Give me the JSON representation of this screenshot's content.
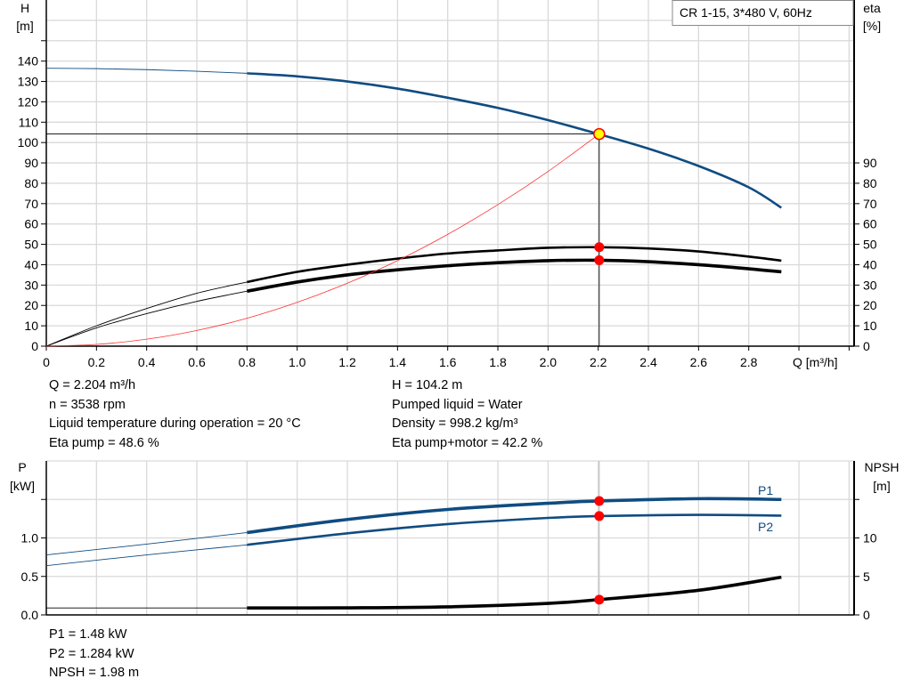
{
  "title": "CR 1-15, 3*480 V, 60Hz",
  "colors": {
    "head": "#0f4c81",
    "efficiency": "#000000",
    "system": "#ff3030",
    "point": "#ff0000",
    "duty_point_fill": "#ffff00",
    "grid": "#d9d9d9"
  },
  "chart_data": [
    {
      "type": "line",
      "title": "CR 1-15, 3*480 V, 60Hz",
      "xlabel": "Q [m³/h]",
      "ylabel": "H\n[m]",
      "y2label": "eta\n[%]",
      "xlabel_text": "Q [m³/h]",
      "ylabel_name": "H",
      "ylabel_unit": "[m]",
      "y2label_name": "eta",
      "y2label_unit": "[%]",
      "xlim": [
        0,
        3.22
      ],
      "ylim": [
        0,
        170
      ],
      "y2lim": [
        0,
        170
      ],
      "xticks": [
        0,
        0.2,
        0.4,
        0.6,
        0.8,
        1.0,
        1.2,
        1.4,
        1.6,
        1.8,
        2.0,
        2.2,
        2.4,
        2.6,
        2.8
      ],
      "xtick_labels": [
        "0",
        "0.2",
        "0.4",
        "0.6",
        "0.8",
        "1.0",
        "1.2",
        "1.4",
        "1.6",
        "1.8",
        "2.0",
        "2.2",
        "2.4",
        "2.6",
        "2.8"
      ],
      "yticks": [
        0,
        10,
        20,
        30,
        40,
        50,
        60,
        70,
        80,
        90,
        100,
        110,
        120,
        130,
        140
      ],
      "y2ticks": [
        0,
        10,
        20,
        30,
        40,
        50,
        60,
        70,
        80,
        90
      ],
      "grid": true,
      "series": [
        {
          "key": "H",
          "axis": "left",
          "color": "#0f4c81",
          "x": [
            0,
            0.2,
            0.4,
            0.6,
            0.8,
            1.0,
            1.2,
            1.4,
            1.6,
            1.8,
            2.0,
            2.2,
            2.4,
            2.6,
            2.8,
            2.93
          ],
          "y": [
            136.5,
            136.3,
            135.8,
            135,
            134,
            132.5,
            130,
            126.5,
            122,
            117,
            111,
            104.2,
            97,
            88.5,
            78,
            68
          ],
          "thin_until": 0.8
        },
        {
          "key": "eta_pump",
          "axis": "right",
          "color": "#000000",
          "x": [
            0,
            0.2,
            0.4,
            0.6,
            0.8,
            1.0,
            1.2,
            1.4,
            1.6,
            1.8,
            2.0,
            2.2,
            2.4,
            2.6,
            2.8,
            2.93
          ],
          "y": [
            0,
            10,
            18.5,
            26,
            31.5,
            36.5,
            40,
            43,
            45.5,
            47,
            48.3,
            48.6,
            48,
            46.5,
            44,
            42
          ],
          "thin_until": 0.8
        },
        {
          "key": "eta_total",
          "axis": "right",
          "color": "#000000",
          "x": [
            0,
            0.2,
            0.4,
            0.6,
            0.8,
            1.0,
            1.2,
            1.4,
            1.6,
            1.8,
            2.0,
            2.2,
            2.4,
            2.6,
            2.8,
            2.93
          ],
          "y": [
            0,
            9,
            16,
            22,
            27,
            31.5,
            35,
            37.5,
            39.5,
            41,
            42,
            42.2,
            41.5,
            40,
            38,
            36.5
          ],
          "thin_until": 0.8,
          "thick": true
        },
        {
          "key": "system",
          "axis": "left",
          "color": "#ff3030",
          "x": [
            0,
            0.2,
            0.4,
            0.6,
            0.8,
            1.0,
            1.2,
            1.4,
            1.6,
            1.8,
            2.0,
            2.204
          ],
          "y": [
            0,
            0.86,
            3.43,
            7.72,
            13.7,
            21.5,
            30.9,
            42.0,
            54.9,
            69.5,
            85.8,
            104.2
          ]
        }
      ],
      "duty_point": {
        "q": 2.204,
        "h": 104.2,
        "eta_pump": 48.6,
        "eta_total": 42.2
      }
    },
    {
      "type": "line",
      "ylabel_name": "P",
      "ylabel_unit": "[kW]",
      "y2label_name": "NPSH",
      "y2label_unit": "[m]",
      "xlim": [
        0,
        3.22
      ],
      "ylim": [
        0,
        2
      ],
      "y2lim": [
        0,
        20
      ],
      "yticks": [
        0,
        0.5,
        1.0,
        1.5
      ],
      "ytick_labels": [
        "0.0",
        "0.5",
        "1.0",
        ""
      ],
      "y2ticks": [
        0,
        5,
        10,
        15
      ],
      "y2tick_labels": [
        "0",
        "5",
        "10",
        ""
      ],
      "grid": true,
      "series": [
        {
          "key": "P1",
          "name": "P1",
          "axis": "left",
          "color": "#0f4c81",
          "x": [
            0,
            0.4,
            0.8,
            1.2,
            1.6,
            2.0,
            2.2,
            2.6,
            2.93
          ],
          "y": [
            0.78,
            0.92,
            1.07,
            1.24,
            1.37,
            1.45,
            1.48,
            1.51,
            1.5
          ],
          "thin_until": 0.8,
          "thick": true
        },
        {
          "key": "P2",
          "name": "P2",
          "axis": "left",
          "color": "#0f4c81",
          "x": [
            0,
            0.4,
            0.8,
            1.2,
            1.6,
            2.0,
            2.2,
            2.6,
            2.93
          ],
          "y": [
            0.64,
            0.78,
            0.91,
            1.06,
            1.18,
            1.26,
            1.284,
            1.3,
            1.29
          ],
          "thin_until": 0.8
        },
        {
          "key": "NPSH",
          "axis": "right",
          "color": "#000000",
          "x": [
            0,
            0.4,
            0.8,
            1.2,
            1.6,
            2.0,
            2.2,
            2.6,
            2.93
          ],
          "y": [
            0.9,
            0.9,
            0.9,
            0.92,
            1.05,
            1.5,
            1.98,
            3.2,
            4.9
          ],
          "thin_until": 0.8,
          "thick": true
        }
      ],
      "duty_point": {
        "q": 2.204,
        "p1": 1.48,
        "p2": 1.284,
        "npsh": 1.98
      }
    }
  ],
  "info_left": [
    "Q = 2.204 m³/h",
    "n = 3538 rpm",
    "Liquid temperature during operation = 20 °C",
    "Eta pump = 48.6 %"
  ],
  "info_right": [
    "H = 104.2 m",
    "Pumped liquid = Water",
    "Density = 998.2 kg/m³",
    "Eta pump+motor = 42.2 %"
  ],
  "info_bottom": [
    "P1 = 1.48 kW",
    "P2 = 1.284 kW",
    "NPSH = 1.98 m"
  ]
}
